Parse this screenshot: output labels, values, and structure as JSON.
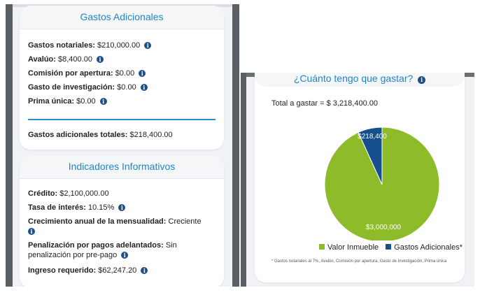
{
  "gastos": {
    "title": "Gastos Adicionales",
    "items": [
      {
        "label": "Gastos notariales:",
        "value": "$210,000.00",
        "info": true
      },
      {
        "label": "Avalúo:",
        "value": "$8,400.00",
        "info": true
      },
      {
        "label": "Comisión por apertura:",
        "value": "$0.00",
        "info": true
      },
      {
        "label": "Gasto de investigación:",
        "value": "$0.00",
        "info": true
      },
      {
        "label": "Prima única:",
        "value": "$0.00",
        "info": true
      }
    ],
    "total_label": "Gastos adicionales totales:",
    "total_value": "$218,400.00"
  },
  "indicadores": {
    "title": "Indicadores Informativos",
    "items": [
      {
        "label": "Crédito:",
        "value": "$2,100,000.00"
      },
      {
        "label": "Tasa de interés:",
        "value": "10.15%"
      },
      {
        "label": "Crecimiento anual de la mensualidad:",
        "value": "Creciente"
      },
      {
        "label": "Penalización por pagos adelantados:",
        "value": "Sin penalización por pre-pago"
      },
      {
        "label": "Ingreso requerido:",
        "value": "$62,247.20"
      }
    ]
  },
  "cuanto": {
    "title": "¿Cuánto tengo que gastar?",
    "total_text": "Total a gastar = $ 3,218,400.00",
    "footnote": "* Gastos notariales al 7%, Avalúo, Comisión por apertura, Gasto de investigación, Prima única"
  },
  "chart_data": {
    "type": "pie",
    "series": [
      {
        "name": "Valor Inmueble",
        "value": 3000000,
        "label": "$3,000,000",
        "color": "#8dbb2a"
      },
      {
        "name": "Gastos Adicionales*",
        "value": 218400,
        "label": "$218,400",
        "color": "#164f8c"
      }
    ],
    "legend_position": "bottom"
  },
  "colors": {
    "accent": "#1b87c9",
    "info_icon": "#1e4f86",
    "green": "#8dbb2a",
    "navy": "#164f8c"
  }
}
